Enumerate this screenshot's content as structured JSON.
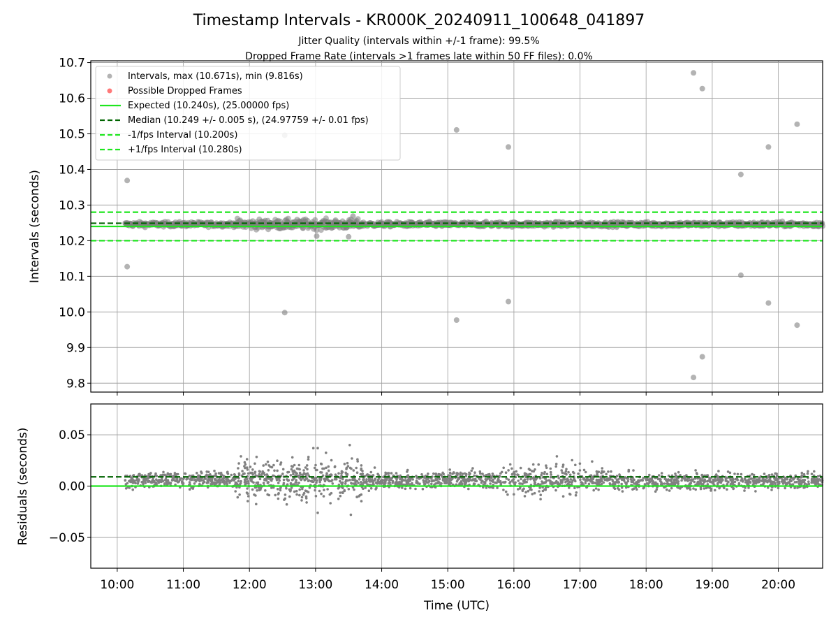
{
  "chart_data": [
    {
      "type": "scatter",
      "title": "Timestamp Intervals - KR000K_20240911_100648_041897",
      "subtitle_1": "Jitter Quality (intervals within +/-1 frame): 99.5%",
      "subtitle_2": "Dropped Frame Rate (intervals >1 frames late within 50 FF files): 0.0%",
      "ylabel": "Intervals (seconds)",
      "ylim": [
        9.775,
        10.705
      ],
      "y_ticks": [
        "9.8",
        "9.9",
        "10.0",
        "10.1",
        "10.2",
        "10.3",
        "10.4",
        "10.5",
        "10.6",
        "10.7"
      ],
      "y_tick_values": [
        9.8,
        9.9,
        10.0,
        10.1,
        10.2,
        10.3,
        10.4,
        10.5,
        10.6,
        10.7
      ],
      "x_range_hours": [
        9.6,
        20.67
      ],
      "grid": true,
      "legend_position": "top-left",
      "legend": [
        "Intervals, max (10.671s), min (9.816s)",
        "Possible Dropped Frames",
        "Expected (10.240s), (25.00000 fps)",
        "Median (10.249 +/- 0.005 s), (24.97759 +/- 0.01 fps)",
        "-1/fps Interval (10.200s)",
        "+1/fps Interval (10.280s)"
      ],
      "reference_lines": {
        "expected": 10.24,
        "median": 10.249,
        "minus_1fps": 10.2,
        "plus_1fps": 10.28
      },
      "band": {
        "x_start_hours": 10.12,
        "x_end_hours": 20.67,
        "center": 10.246,
        "typical_spread": 0.006,
        "wide_spread_zone_hours": [
          11.8,
          13.7
        ],
        "wide_spread": 0.012
      },
      "outliers": [
        {
          "t": "10:09",
          "y": 10.369
        },
        {
          "t": "10:09",
          "y": 10.127
        },
        {
          "t": "12:32",
          "y": 10.496
        },
        {
          "t": "12:32",
          "y": 9.998
        },
        {
          "t": "13:01",
          "y": 10.213
        },
        {
          "t": "13:30",
          "y": 10.211
        },
        {
          "t": "13:34",
          "y": 10.269
        },
        {
          "t": "15:08",
          "y": 10.511
        },
        {
          "t": "15:08",
          "y": 9.977
        },
        {
          "t": "15:55",
          "y": 10.463
        },
        {
          "t": "15:55",
          "y": 10.029
        },
        {
          "t": "18:43",
          "y": 10.671
        },
        {
          "t": "18:43",
          "y": 9.816
        },
        {
          "t": "18:51",
          "y": 10.627
        },
        {
          "t": "18:51",
          "y": 9.874
        },
        {
          "t": "19:26",
          "y": 10.386
        },
        {
          "t": "19:26",
          "y": 10.103
        },
        {
          "t": "19:51",
          "y": 10.463
        },
        {
          "t": "19:51",
          "y": 10.025
        },
        {
          "t": "20:17",
          "y": 10.527
        },
        {
          "t": "20:17",
          "y": 9.963
        }
      ],
      "colors": {
        "points": "#808080",
        "dropped": "#ff4040",
        "expected": "#1ee61e",
        "median": "#006400",
        "fps_interval": "#1ee61e"
      }
    },
    {
      "type": "scatter",
      "xlabel": "Time (UTC)",
      "ylabel": "Residuals (seconds)",
      "ylim": [
        -0.08,
        0.08
      ],
      "y_ticks": [
        "−0.05",
        "0.00",
        "0.05"
      ],
      "y_tick_values": [
        -0.05,
        0.0,
        0.05
      ],
      "x_ticks": [
        "10:00",
        "11:00",
        "12:00",
        "13:00",
        "14:00",
        "15:00",
        "16:00",
        "17:00",
        "18:00",
        "19:00",
        "20:00"
      ],
      "x_tick_values_hours": [
        10,
        11,
        12,
        13,
        14,
        15,
        16,
        17,
        18,
        19,
        20
      ],
      "x_range_hours": [
        9.6,
        20.67
      ],
      "grid": true,
      "reference_lines": {
        "zero": 0.0,
        "median_offset": 0.009
      },
      "outliers": [
        {
          "t": "12:58",
          "y": 0.037
        },
        {
          "t": "13:02",
          "y": 0.037
        },
        {
          "t": "13:31",
          "y": 0.04
        },
        {
          "t": "13:02",
          "y": -0.026
        },
        {
          "t": "13:32",
          "y": -0.028
        },
        {
          "t": "16:39",
          "y": 0.029
        },
        {
          "t": "17:11",
          "y": 0.024
        }
      ],
      "colors": {
        "points": "#808080",
        "zero": "#1ee61e",
        "median": "#006400"
      }
    }
  ]
}
